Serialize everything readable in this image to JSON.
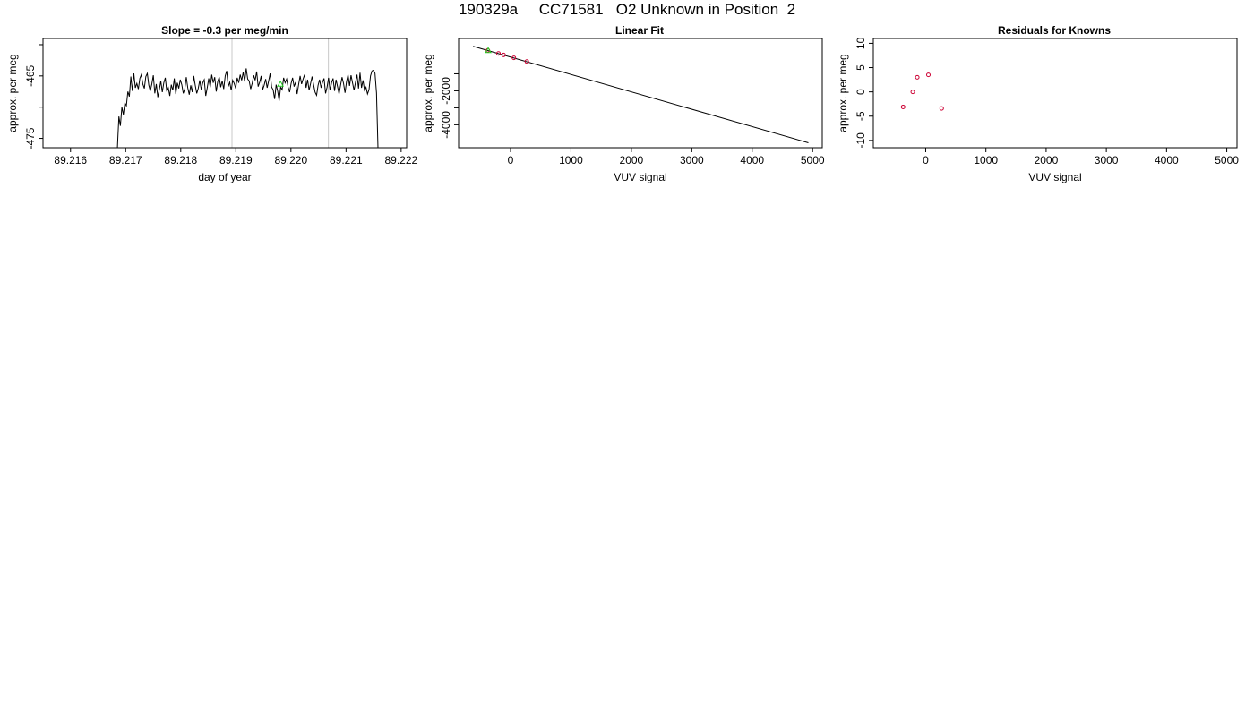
{
  "figure": {
    "title": "190329a     CC71581   O2 Unknown in Position  2"
  },
  "colors": {
    "line": "#000000",
    "guide": "#c8c8c8",
    "known": "#cc0033",
    "unknown": "#22cc22"
  },
  "chart_data": [
    {
      "type": "line",
      "title": "Slope =  -0.3  per meg/min",
      "xlabel": "day of year",
      "ylabel": "approx. per meg",
      "xlim": [
        89.2155,
        89.2221
      ],
      "ylim": [
        -476.5,
        -459
      ],
      "xticks": [
        {
          "value": 89.216,
          "label": "89.216"
        },
        {
          "value": 89.217,
          "label": "89.217"
        },
        {
          "value": 89.218,
          "label": "89.218"
        },
        {
          "value": 89.219,
          "label": "89.219"
        },
        {
          "value": 89.22,
          "label": "89.220"
        },
        {
          "value": 89.221,
          "label": "89.221"
        },
        {
          "value": 89.222,
          "label": "89.222"
        }
      ],
      "yticks": [
        {
          "value": -475,
          "label": "-475"
        },
        {
          "value": -470,
          "label": ""
        },
        {
          "value": -465,
          "label": "-465"
        },
        {
          "value": -460,
          "label": ""
        }
      ],
      "vlines": [
        89.21893,
        89.22068
      ],
      "series_x_start": 89.21685,
      "series_x_end": 89.22158,
      "series": [
        -476.6,
        -471.5,
        -473.0,
        -470.0,
        -471.2,
        -469.3,
        -469.8,
        -467.5,
        -468.3,
        -465.1,
        -467.4,
        -464.6,
        -466.9,
        -466.2,
        -467.1,
        -465.4,
        -464.8,
        -466.3,
        -467.0,
        -465.1,
        -464.6,
        -466.5,
        -467.4,
        -466.3,
        -464.9,
        -467.8,
        -466.3,
        -468.4,
        -467.2,
        -465.8,
        -467.6,
        -466.1,
        -465.3,
        -467.5,
        -466.9,
        -468.2,
        -466.4,
        -467.3,
        -465.4,
        -467.9,
        -466.1,
        -467.0,
        -465.6,
        -466.4,
        -467.8,
        -467.1,
        -465.2,
        -466.9,
        -468.0,
        -466.5,
        -467.6,
        -465.0,
        -466.5,
        -467.8,
        -467.0,
        -465.7,
        -467.2,
        -466.1,
        -465.6,
        -468.2,
        -466.9,
        -465.4,
        -466.8,
        -464.8,
        -466.1,
        -465.2,
        -467.5,
        -465.9,
        -465.2,
        -466.8,
        -465.8,
        -467.1,
        -465.0,
        -464.2,
        -466.7,
        -466.0,
        -467.3,
        -465.7,
        -466.2,
        -467.0,
        -465.3,
        -466.1,
        -464.8,
        -465.7,
        -464.4,
        -465.9,
        -463.8,
        -465.5,
        -465.8,
        -467.1,
        -466.2,
        -464.9,
        -465.7,
        -464.3,
        -466.7,
        -466.0,
        -465.0,
        -467.2,
        -466.5,
        -465.5,
        -466.9,
        -465.8,
        -464.6,
        -466.8,
        -467.2,
        -468.7,
        -466.4,
        -467.4,
        -469.0,
        -466.8,
        -467.2,
        -465.3,
        -466.1,
        -465.5,
        -466.8,
        -467.6,
        -466.2,
        -465.3,
        -466.7,
        -466.0,
        -467.9,
        -466.4,
        -465.0,
        -466.3,
        -465.5,
        -464.8,
        -466.9,
        -465.6,
        -467.3,
        -466.2,
        -465.1,
        -466.4,
        -467.6,
        -468.1,
        -466.5,
        -465.6,
        -466.9,
        -466.0,
        -465.4,
        -467.8,
        -466.8,
        -465.3,
        -467.3,
        -466.1,
        -465.4,
        -467.4,
        -465.6,
        -466.7,
        -467.9,
        -466.5,
        -465.2,
        -466.2,
        -467.7,
        -465.9,
        -464.8,
        -466.6,
        -464.9,
        -466.1,
        -467.3,
        -466.0,
        -464.8,
        -467.0,
        -464.5,
        -466.9,
        -465.7,
        -467.3,
        -466.8,
        -467.9,
        -467.2,
        -465.0,
        -464.2,
        -464.1,
        -464.6,
        -467.7,
        -476.6
      ],
      "unknown_point": {
        "x": 89.21981,
        "y": -466.3
      }
    },
    {
      "type": "scatter",
      "title": "Linear Fit",
      "xlabel": "VUV signal",
      "ylabel": "approx. per meg",
      "xlim": [
        -860,
        5160
      ],
      "ylim": [
        -5350,
        1080
      ],
      "xticks": [
        {
          "value": 0,
          "label": "0"
        },
        {
          "value": 1000,
          "label": "1000"
        },
        {
          "value": 2000,
          "label": "2000"
        },
        {
          "value": 3000,
          "label": "3000"
        },
        {
          "value": 4000,
          "label": "4000"
        },
        {
          "value": 5000,
          "label": "5000"
        }
      ],
      "yticks": [
        {
          "value": -4000,
          "label": "-4000"
        },
        {
          "value": -3000,
          "label": ""
        },
        {
          "value": -2000,
          "label": "-2000"
        },
        {
          "value": -1000,
          "label": ""
        }
      ],
      "fit_line": {
        "x": [
          -620,
          4930
        ],
        "y": [
          620,
          -5060
        ]
      },
      "knowns": [
        {
          "x": -375,
          "y": 380
        },
        {
          "x": -200,
          "y": 200
        },
        {
          "x": -115,
          "y": 110
        },
        {
          "x": 55,
          "y": -60
        },
        {
          "x": 270,
          "y": -280
        }
      ],
      "unknown_point": {
        "x": -370,
        "y": 377
      }
    },
    {
      "type": "scatter",
      "title": "Residuals for Knowns",
      "xlabel": "VUV signal",
      "ylabel": "approx. per meg",
      "xlim": [
        -870,
        5170
      ],
      "ylim": [
        -11.5,
        11
      ],
      "xticks": [
        {
          "value": 0,
          "label": "0"
        },
        {
          "value": 1000,
          "label": "1000"
        },
        {
          "value": 2000,
          "label": "2000"
        },
        {
          "value": 3000,
          "label": "3000"
        },
        {
          "value": 4000,
          "label": "4000"
        },
        {
          "value": 5000,
          "label": "5000"
        }
      ],
      "yticks": [
        {
          "value": -10,
          "label": "-10"
        },
        {
          "value": -5,
          "label": "-5"
        },
        {
          "value": 0,
          "label": "0"
        },
        {
          "value": 5,
          "label": "5"
        },
        {
          "value": 10,
          "label": "10"
        }
      ],
      "knowns": [
        {
          "x": -375,
          "y": -3.1
        },
        {
          "x": -215,
          "y": 0.0
        },
        {
          "x": -140,
          "y": 3.0
        },
        {
          "x": 45,
          "y": 3.5
        },
        {
          "x": 265,
          "y": -3.4
        }
      ]
    }
  ]
}
